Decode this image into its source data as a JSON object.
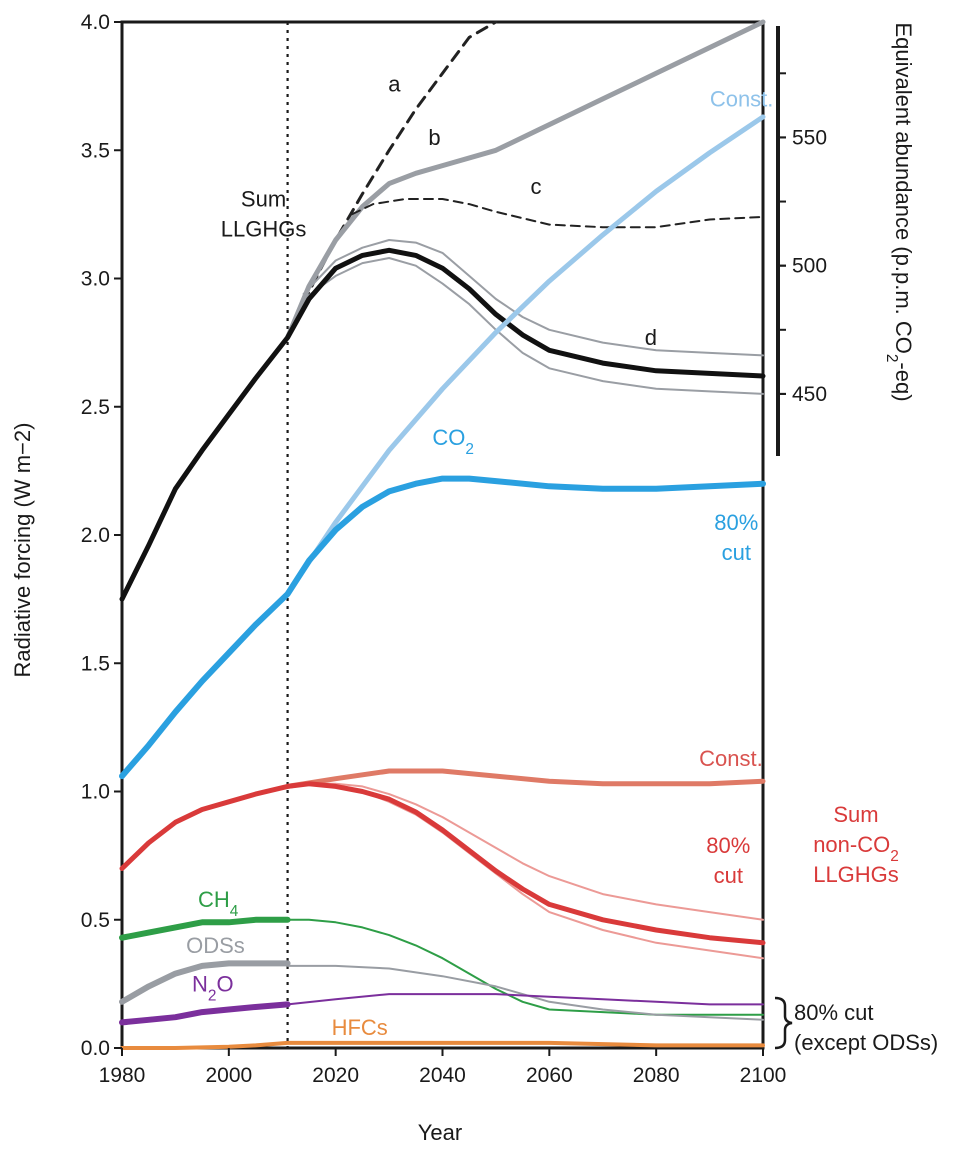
{
  "chart_data": {
    "type": "line",
    "title": "",
    "xlabel": "Year",
    "ylabel": "Radiative forcing (W m−2)",
    "xlim": [
      1980,
      2100
    ],
    "ylim": [
      0.0,
      4.0
    ],
    "x_ticks": [
      "1980",
      "2000",
      "2020",
      "2040",
      "2060",
      "2080",
      "2100"
    ],
    "y_ticks": [
      "0.0",
      "0.5",
      "1.0",
      "1.5",
      "2.0",
      "2.5",
      "3.0",
      "3.5",
      "4.0"
    ],
    "secondary_axis": {
      "label": "Equivalent abundance (p.p.m. CO₂-eq)",
      "ticks": [
        "450",
        "500",
        "550"
      ],
      "tick_values_wm2": [
        2.55,
        3.05,
        3.55
      ]
    },
    "grid": false,
    "reference_line_year": 2011,
    "series": [
      {
        "key": "a",
        "color": "#222222",
        "style": "dashed",
        "width": 3,
        "x": [
          2011,
          2016,
          2020,
          2025,
          2030,
          2035,
          2040,
          2045,
          2050
        ],
        "y": [
          2.77,
          2.99,
          3.15,
          3.33,
          3.5,
          3.66,
          3.8,
          3.94,
          4.0
        ]
      },
      {
        "key": "b",
        "color": "#9a9ea4",
        "style": "solid",
        "width": 5,
        "x": [
          2011,
          2015,
          2020,
          2025,
          2030,
          2035,
          2040,
          2050,
          2060,
          2070,
          2080,
          2090,
          2100
        ],
        "y": [
          2.77,
          2.97,
          3.15,
          3.28,
          3.37,
          3.41,
          3.44,
          3.5,
          3.6,
          3.7,
          3.8,
          3.9,
          4.0
        ]
      },
      {
        "key": "c",
        "color": "#222222",
        "style": "dashed-thin",
        "width": 2,
        "x": [
          2023,
          2027,
          2033,
          2040,
          2045,
          2050,
          2060,
          2070,
          2080,
          2090,
          2100
        ],
        "y": [
          3.25,
          3.29,
          3.31,
          3.31,
          3.29,
          3.26,
          3.21,
          3.2,
          3.2,
          3.23,
          3.24
        ]
      },
      {
        "key": "sum-upper",
        "color": "#9a9ea4",
        "style": "solid",
        "width": 2,
        "x": [
          2014,
          2020,
          2025,
          2030,
          2035,
          2040,
          2045,
          2050,
          2055,
          2060,
          2070,
          2080,
          2090,
          2100
        ],
        "y": [
          2.94,
          3.07,
          3.12,
          3.15,
          3.14,
          3.1,
          3.01,
          2.92,
          2.85,
          2.8,
          2.75,
          2.72,
          2.71,
          2.7
        ]
      },
      {
        "key": "sum-lower",
        "color": "#9a9ea4",
        "style": "solid",
        "width": 2,
        "x": [
          2014,
          2020,
          2025,
          2030,
          2035,
          2040,
          2045,
          2050,
          2055,
          2060,
          2070,
          2080,
          2090,
          2100
        ],
        "y": [
          2.92,
          3.01,
          3.06,
          3.08,
          3.05,
          2.98,
          2.9,
          2.8,
          2.71,
          2.65,
          2.6,
          2.57,
          2.56,
          2.55
        ]
      },
      {
        "key": "sum-llghgs",
        "color": "#111111",
        "style": "solid",
        "width": 5,
        "x": [
          1980,
          1985,
          1990,
          1995,
          2000,
          2005,
          2011,
          2015,
          2020,
          2025,
          2030,
          2035,
          2040,
          2045,
          2050,
          2055,
          2060,
          2070,
          2080,
          2090,
          2100
        ],
        "y": [
          1.75,
          1.96,
          2.18,
          2.33,
          2.47,
          2.61,
          2.77,
          2.92,
          3.04,
          3.09,
          3.11,
          3.09,
          3.04,
          2.96,
          2.86,
          2.78,
          2.72,
          2.67,
          2.64,
          2.63,
          2.62
        ]
      },
      {
        "key": "co2-const",
        "color": "#9bc8ea",
        "style": "solid",
        "width": 5,
        "x": [
          2011,
          2020,
          2030,
          2040,
          2050,
          2060,
          2070,
          2080,
          2090,
          2100
        ],
        "y": [
          1.77,
          2.05,
          2.33,
          2.57,
          2.79,
          2.99,
          3.17,
          3.34,
          3.49,
          3.63
        ]
      },
      {
        "key": "co2",
        "color": "#2aa0e0",
        "style": "solid",
        "width": 6,
        "x": [
          1980,
          1985,
          1990,
          1995,
          2000,
          2005,
          2011,
          2015,
          2020,
          2025,
          2030,
          2035,
          2040,
          2045,
          2050,
          2060,
          2070,
          2080,
          2090,
          2100
        ],
        "y": [
          1.06,
          1.18,
          1.31,
          1.43,
          1.54,
          1.65,
          1.77,
          1.9,
          2.02,
          2.11,
          2.17,
          2.2,
          2.22,
          2.22,
          2.21,
          2.19,
          2.18,
          2.18,
          2.19,
          2.2
        ]
      },
      {
        "key": "nonco2-const",
        "color": "#df7a66",
        "style": "solid",
        "width": 5,
        "x": [
          2011,
          2020,
          2030,
          2040,
          2050,
          2060,
          2070,
          2080,
          2090,
          2100
        ],
        "y": [
          1.02,
          1.05,
          1.08,
          1.08,
          1.06,
          1.04,
          1.03,
          1.03,
          1.03,
          1.04
        ]
      },
      {
        "key": "nonco2-upper",
        "color": "#ec9a96",
        "style": "solid",
        "width": 2,
        "x": [
          2011,
          2015,
          2020,
          2025,
          2030,
          2035,
          2040,
          2045,
          2050,
          2055,
          2060,
          2070,
          2080,
          2090,
          2100
        ],
        "y": [
          1.02,
          1.03,
          1.03,
          1.02,
          0.99,
          0.95,
          0.9,
          0.84,
          0.78,
          0.72,
          0.67,
          0.6,
          0.56,
          0.53,
          0.5
        ]
      },
      {
        "key": "nonco2-lower",
        "color": "#ec9a96",
        "style": "solid",
        "width": 2,
        "x": [
          2011,
          2015,
          2020,
          2025,
          2030,
          2035,
          2040,
          2045,
          2050,
          2055,
          2060,
          2070,
          2080,
          2090,
          2100
        ],
        "y": [
          1.02,
          1.03,
          1.02,
          1.0,
          0.96,
          0.91,
          0.84,
          0.76,
          0.68,
          0.6,
          0.53,
          0.46,
          0.41,
          0.38,
          0.35
        ]
      },
      {
        "key": "sum-nonco2",
        "color": "#d93a3a",
        "style": "solid",
        "width": 5,
        "x": [
          1980,
          1985,
          1990,
          1995,
          2000,
          2005,
          2011,
          2015,
          2020,
          2025,
          2030,
          2035,
          2040,
          2045,
          2050,
          2055,
          2060,
          2070,
          2080,
          2090,
          2100
        ],
        "y": [
          0.7,
          0.8,
          0.88,
          0.93,
          0.96,
          0.99,
          1.02,
          1.03,
          1.02,
          1.0,
          0.97,
          0.92,
          0.85,
          0.77,
          0.69,
          0.62,
          0.56,
          0.5,
          0.46,
          0.43,
          0.41
        ]
      },
      {
        "key": "ch4",
        "color": "#2e9e47",
        "style": "solid",
        "width": 6,
        "x": [
          1980,
          1985,
          1990,
          1995,
          2000,
          2005,
          2011
        ],
        "y": [
          0.43,
          0.45,
          0.47,
          0.49,
          0.49,
          0.5,
          0.5
        ]
      },
      {
        "key": "ch4-proj",
        "color": "#2e9e47",
        "style": "solid",
        "width": 2,
        "x": [
          2011,
          2015,
          2020,
          2025,
          2030,
          2035,
          2040,
          2045,
          2050,
          2055,
          2060,
          2070,
          2080,
          2090,
          2100
        ],
        "y": [
          0.5,
          0.5,
          0.49,
          0.47,
          0.44,
          0.4,
          0.35,
          0.29,
          0.23,
          0.18,
          0.15,
          0.14,
          0.13,
          0.13,
          0.13
        ]
      },
      {
        "key": "odss",
        "color": "#999da3",
        "style": "solid",
        "width": 6,
        "x": [
          1980,
          1985,
          1990,
          1995,
          2000,
          2005,
          2011
        ],
        "y": [
          0.18,
          0.24,
          0.29,
          0.32,
          0.33,
          0.33,
          0.33
        ]
      },
      {
        "key": "odss-proj",
        "color": "#999da3",
        "style": "solid",
        "width": 2,
        "x": [
          2011,
          2020,
          2030,
          2040,
          2050,
          2055,
          2060,
          2070,
          2080,
          2090,
          2100
        ],
        "y": [
          0.32,
          0.32,
          0.31,
          0.28,
          0.24,
          0.21,
          0.18,
          0.15,
          0.13,
          0.12,
          0.11
        ]
      },
      {
        "key": "n2o",
        "color": "#7b2f9c",
        "style": "solid",
        "width": 6,
        "x": [
          1980,
          1985,
          1990,
          1995,
          2000,
          2005,
          2011
        ],
        "y": [
          0.1,
          0.11,
          0.12,
          0.14,
          0.15,
          0.16,
          0.17
        ]
      },
      {
        "key": "n2o-proj",
        "color": "#7b2f9c",
        "style": "solid",
        "width": 2,
        "x": [
          2011,
          2020,
          2030,
          2040,
          2050,
          2060,
          2070,
          2080,
          2090,
          2100
        ],
        "y": [
          0.17,
          0.19,
          0.21,
          0.21,
          0.21,
          0.2,
          0.19,
          0.18,
          0.17,
          0.17
        ]
      },
      {
        "key": "hfcs",
        "color": "#e88b3e",
        "style": "solid",
        "width": 4,
        "x": [
          1980,
          1990,
          2000,
          2005,
          2011,
          2020,
          2040,
          2060,
          2080,
          2100
        ],
        "y": [
          0.0,
          0.0,
          0.005,
          0.01,
          0.02,
          0.02,
          0.02,
          0.02,
          0.01,
          0.01
        ]
      }
    ],
    "annotations": [
      {
        "key": "sum-llghgs-label",
        "lines": [
          "Sum",
          "LLGHGs"
        ],
        "color": "#1a1a1a",
        "x": 2006.5,
        "y": 3.28,
        "anchor": "middle"
      },
      {
        "key": "a",
        "lines": [
          "a"
        ],
        "color": "#1a1a1a",
        "x": 2031,
        "y": 3.73,
        "anchor": "middle"
      },
      {
        "key": "b",
        "lines": [
          "b"
        ],
        "color": "#1a1a1a",
        "x": 2038.5,
        "y": 3.52,
        "anchor": "middle"
      },
      {
        "key": "c",
        "lines": [
          "c"
        ],
        "color": "#1a1a1a",
        "x": 2057.5,
        "y": 3.33,
        "anchor": "middle"
      },
      {
        "key": "d",
        "lines": [
          "d"
        ],
        "color": "#1a1a1a",
        "x": 2079,
        "y": 2.74,
        "anchor": "middle"
      },
      {
        "key": "co2-const-label",
        "lines": [
          "Const."
        ],
        "color": "#8ec2ea",
        "x": 2096,
        "y": 3.67,
        "anchor": "middle"
      },
      {
        "key": "co2-label",
        "lines": [
          "CO₂"
        ],
        "color": "#2aa0e0",
        "x": 2042,
        "y": 2.35,
        "anchor": "middle"
      },
      {
        "key": "co2-cut-label",
        "lines": [
          "80%",
          "cut"
        ],
        "color": "#2aa0e0",
        "x": 2095,
        "y": 2.02,
        "anchor": "middle"
      },
      {
        "key": "nonco2-const-label",
        "lines": [
          "Const."
        ],
        "color": "#d9534f",
        "x": 2094,
        "y": 1.1,
        "anchor": "middle"
      },
      {
        "key": "nonco2-cut-label",
        "lines": [
          "80%",
          "cut"
        ],
        "color": "#d93a3a",
        "x": 2093.5,
        "y": 0.76,
        "anchor": "middle"
      },
      {
        "key": "ch4-label",
        "lines": [
          "CH₄"
        ],
        "color": "#2e9e47",
        "x": 1998,
        "y": 0.55,
        "anchor": "middle"
      },
      {
        "key": "odss-label",
        "lines": [
          "ODSs"
        ],
        "color": "#999da3",
        "x": 1997.5,
        "y": 0.37,
        "anchor": "middle"
      },
      {
        "key": "n2o-label",
        "lines": [
          "N₂O"
        ],
        "color": "#7b2f9c",
        "x": 1997,
        "y": 0.22,
        "anchor": "middle"
      },
      {
        "key": "hfcs-label",
        "lines": [
          "HFCs"
        ],
        "color": "#e88b3e",
        "x": 2024.5,
        "y": 0.05,
        "anchor": "middle"
      }
    ],
    "side_labels": {
      "sum_nonco2": [
        "Sum",
        "non-CO₂",
        "LLGHGs"
      ],
      "cut_except": [
        "80% cut",
        "(except ODSs)"
      ]
    }
  }
}
